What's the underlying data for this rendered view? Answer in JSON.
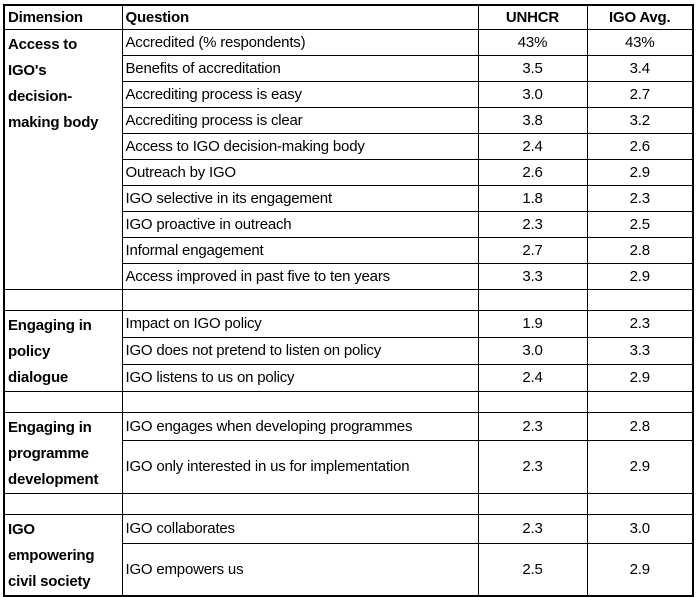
{
  "chart_data": {
    "type": "table",
    "columns": [
      "Dimension",
      "Question",
      "UNHCR",
      "IGO Avg."
    ],
    "sections": [
      {
        "dimension": "Access to\nIGO's\ndecision-\nmaking body",
        "rows": [
          {
            "question": "Accredited (% respondents)",
            "unhcr": "43%",
            "igo_avg": "43%"
          },
          {
            "question": "Benefits of accreditation",
            "unhcr": "3.5",
            "igo_avg": "3.4"
          },
          {
            "question": "Accrediting process is easy",
            "unhcr": "3.0",
            "igo_avg": "2.7"
          },
          {
            "question": "Accrediting process is clear",
            "unhcr": "3.8",
            "igo_avg": "3.2"
          },
          {
            "question": "Access to IGO decision-making body",
            "unhcr": "2.4",
            "igo_avg": "2.6"
          },
          {
            "question": "Outreach by IGO",
            "unhcr": "2.6",
            "igo_avg": "2.9"
          },
          {
            "question": "IGO selective in its engagement",
            "unhcr": "1.8",
            "igo_avg": "2.3"
          },
          {
            "question": "IGO proactive in outreach",
            "unhcr": "2.3",
            "igo_avg": "2.5"
          },
          {
            "question": "Informal engagement",
            "unhcr": "2.7",
            "igo_avg": "2.8"
          },
          {
            "question": "Access improved in past five to ten years",
            "unhcr": "3.3",
            "igo_avg": "2.9"
          }
        ]
      },
      {
        "dimension": "Engaging in\npolicy\ndialogue",
        "rows": [
          {
            "question": "Impact on IGO policy",
            "unhcr": "1.9",
            "igo_avg": "2.3"
          },
          {
            "question": "IGO does not pretend to listen on policy",
            "unhcr": "3.0",
            "igo_avg": "3.3"
          },
          {
            "question": "IGO listens to us on policy",
            "unhcr": "2.4",
            "igo_avg": "2.9"
          }
        ]
      },
      {
        "dimension": "Engaging in\nprogramme\ndevelopment",
        "rows": [
          {
            "question": "IGO engages when developing programmes",
            "unhcr": "2.3",
            "igo_avg": "2.8"
          },
          {
            "question": "IGO only interested in us for implementation",
            "unhcr": "2.3",
            "igo_avg": "2.9"
          }
        ]
      },
      {
        "dimension": "IGO\nempowering\ncivil society",
        "rows": [
          {
            "question": "IGO collaborates",
            "unhcr": "2.3",
            "igo_avg": "3.0"
          },
          {
            "question": "IGO empowers us",
            "unhcr": "2.5",
            "igo_avg": "2.9"
          }
        ]
      }
    ]
  }
}
